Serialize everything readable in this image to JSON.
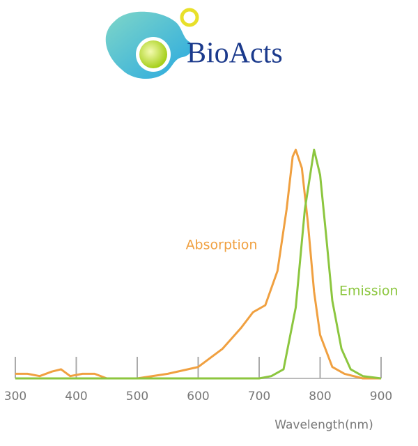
{
  "brand": "BioActs",
  "chart_data": {
    "type": "line",
    "xlabel": "Wavelength(nm)",
    "xlim": [
      300,
      900
    ],
    "xticks": [
      300,
      400,
      500,
      600,
      700,
      800,
      900
    ],
    "ylim": [
      0,
      1
    ],
    "series": [
      {
        "name": "Absorption",
        "color": "#f0a040",
        "x": [
          300,
          320,
          340,
          360,
          375,
          390,
          410,
          430,
          450,
          500,
          550,
          600,
          640,
          670,
          690,
          710,
          730,
          745,
          755,
          760,
          770,
          780,
          790,
          800,
          820,
          840,
          870,
          900
        ],
        "values": [
          0.02,
          0.02,
          0.01,
          0.03,
          0.04,
          0.01,
          0.02,
          0.02,
          0,
          0,
          0.02,
          0.05,
          0.13,
          0.22,
          0.29,
          0.32,
          0.47,
          0.74,
          0.97,
          1,
          0.92,
          0.68,
          0.38,
          0.19,
          0.05,
          0.02,
          0,
          0
        ]
      },
      {
        "name": "Emission",
        "color": "#8cc63f",
        "x": [
          300,
          700,
          720,
          740,
          760,
          775,
          790,
          800,
          810,
          820,
          835,
          850,
          870,
          900
        ],
        "values": [
          0,
          0,
          0.01,
          0.04,
          0.31,
          0.74,
          1,
          0.89,
          0.62,
          0.34,
          0.13,
          0.04,
          0.01,
          0
        ]
      }
    ]
  }
}
